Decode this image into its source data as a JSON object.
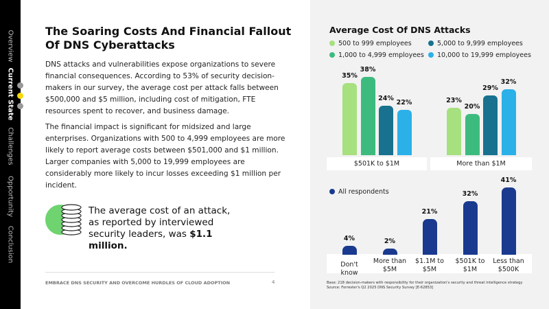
{
  "nav": [
    "Overview",
    "Current State",
    "Challenges",
    "Opportunity",
    "Conclusion"
  ],
  "document": {
    "title": "The Soaring Costs And Financial Fallout Of DNS Cyberattacks",
    "paragraphs": [
      "DNS attacks and vulnerabilities expose organizations to severe financial consequences. According to 53% of security decision-makers in our survey, the average cost per attack falls between $500,000 and $5 million, including cost of mitigation, FTE resources spent to recover, and business damage.",
      "The financial impact is significant for midsized and large enterprises. Organizations with 500 to 4,999 employees are more likely to report average costs between $501,000 and $1 million. Larger companies with 5,000 to 19,999 employees are considerably more likely to incur losses exceeding $1 million per incident."
    ],
    "callout": {
      "text": "The average cost of an attack, as reported by interviewed security leaders, was",
      "emphasis": "$1.1 million."
    },
    "footer": "EMBRACE DNS SECURITY AND OVERCOME HURDLES OF CLOUD ADOPTION",
    "page_number": "4"
  },
  "chart_data": [
    {
      "type": "bar",
      "title": "Average Cost Of DNS Attacks",
      "categories": [
        "$501K to $1M",
        "More than $1M"
      ],
      "series": [
        {
          "name": "500 to 999 employees",
          "color": "#a6e07f",
          "values": [
            35,
            23
          ],
          "value_labels": [
            "35%",
            "23%"
          ]
        },
        {
          "name": "1,000 to 4,999 employees",
          "color": "#3dbb7e",
          "values": [
            38,
            20
          ],
          "value_labels": [
            "38%",
            "20%"
          ]
        },
        {
          "name": "5,000 to 9,999 employees",
          "color": "#17718f",
          "values": [
            24,
            29
          ],
          "value_labels": [
            "24%",
            "29%"
          ]
        },
        {
          "name": "10,000 to 19,999 employees",
          "color": "#2bb0e8",
          "values": [
            22,
            32
          ],
          "value_labels": [
            "22%",
            "32%"
          ]
        }
      ]
    },
    {
      "type": "bar",
      "categories": [
        "Don't know",
        "More than $5M",
        "$1.1M to $5M",
        "$501K to $1M",
        "Less than $500K"
      ],
      "series": [
        {
          "name": "All respondents",
          "color": "#1a3a8f",
          "values": [
            4,
            2,
            21,
            32,
            41
          ],
          "value_labels": [
            "4%",
            "2%",
            "21%",
            "32%",
            "41%"
          ]
        }
      ]
    }
  ],
  "footnote": [
    "Base: 218 decision-makers with responsibility for their organization's security and threat intelligence strategy",
    "Source: Forrester's Q2 2025 DNS Security Survey [E-62853]"
  ]
}
